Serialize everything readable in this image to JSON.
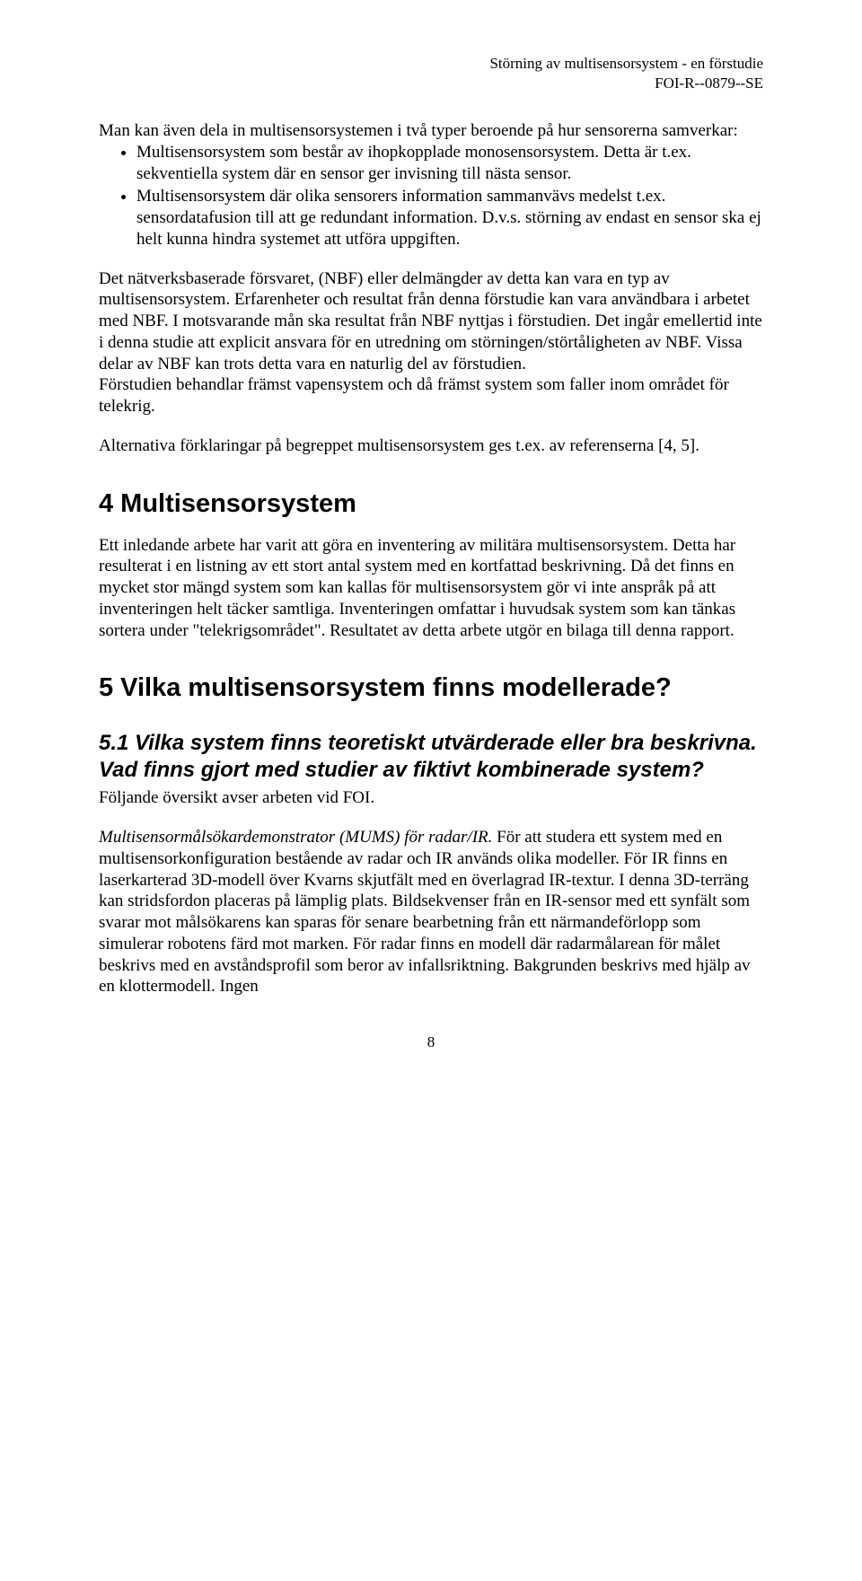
{
  "header": {
    "line1": "Störning av multisensorsystem - en förstudie",
    "line2": "FOI-R--0879--SE"
  },
  "intro_line": "Man kan även dela in multisensorsystemen i två typer beroende på hur sensorerna samverkar:",
  "bullets": [
    "Multisensorsystem som består av ihopkopplade monosensorsystem. Detta är t.ex. sekventiella system där en sensor ger invisning till nästa sensor.",
    "Multisensorsystem där olika sensorers information sammanvävs medelst t.ex. sensordatafusion till att ge redundant information. D.v.s. störning av endast en sensor ska ej helt kunna hindra systemet att utföra uppgiften."
  ],
  "para2": "Det nätverksbaserade försvaret, (NBF) eller delmängder av detta kan vara en typ av multisensorsystem. Erfarenheter och resultat från denna förstudie kan vara användbara i arbetet med NBF. I motsvarande mån ska resultat från NBF nyttjas i förstudien. Det ingår emellertid inte i denna studie att explicit ansvara för en utredning om störningen/störtåligheten av NBF. Vissa delar av NBF kan trots detta vara en naturlig del av förstudien.",
  "para2b": "Förstudien behandlar främst vapensystem och då främst system som faller inom området för telekrig.",
  "para3": "Alternativa förklaringar på begreppet multisensorsystem ges t.ex. av referenserna [4, 5].",
  "section4": {
    "title": "4 Multisensorsystem",
    "body": "Ett inledande arbete har varit att göra en inventering av militära multisensorsystem. Detta har resulterat i en listning av ett stort antal system med en kortfattad beskrivning. Då det finns en mycket stor mängd system som kan kallas för multisensorsystem gör vi inte anspråk på att inventeringen helt täcker samtliga. Inventeringen omfattar i huvudsak system som kan tänkas sortera under \"telekrigsområdet\". Resultatet av detta arbete utgör en bilaga till denna rapport."
  },
  "section5": {
    "title": "5 Vilka multisensorsystem finns modellerade?",
    "sub51_title": "5.1 Vilka system finns teoretiskt utvärderade eller bra beskrivna. Vad finns gjort med studier av fiktivt kombinerade system?",
    "sub51_intro": "Följande översikt avser arbeten vid FOI.",
    "sub51_lead_italic": "Multisensormålsökardemonstrator (MUMS) för radar/IR.",
    "sub51_body": " För att studera ett system med en multisensorkonfiguration bestående av radar och IR används olika modeller. För IR finns en laserkarterad 3D-modell över Kvarns skjutfält med en överlagrad IR-textur. I denna 3D-terräng kan stridsfordon placeras på lämplig plats. Bildsekvenser från en IR-sensor med ett synfält som svarar mot målsökarens kan sparas för senare bearbetning från ett närmandeförlopp som simulerar robotens färd mot marken. För radar finns en modell där radarmålarean för målet beskrivs med en avståndsprofil som beror av infallsriktning. Bakgrunden beskrivs med hjälp av en klottermodell. Ingen"
  },
  "page_number": "8"
}
